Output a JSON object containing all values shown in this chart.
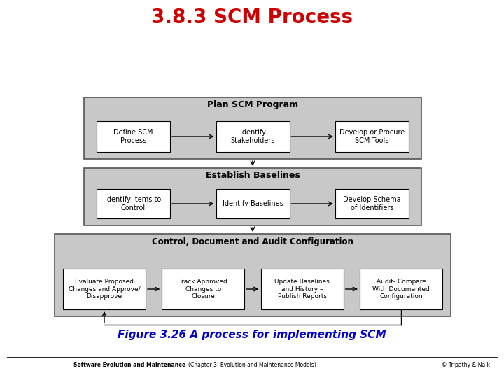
{
  "title": "3.8.3 SCM Process",
  "title_color": "#CC0000",
  "title_fontsize": 20,
  "figure_caption": "Figure 3.26 A process for implementing SCM",
  "caption_color": "#0000CC",
  "caption_fontsize": 11,
  "footer_left": "Software Evolution and Maintenance",
  "footer_right": "© Tripathy & Naik",
  "footer_middle": "(Chapter 3: Evolution and Maintenance Models)",
  "bg_color": "#FFFFFF",
  "group1": {
    "title": "Plan SCM Program",
    "boxes": [
      "Define SCM\nProcess",
      "Identify\nStakeholders",
      "Develop or Procure\nSCM Tools"
    ]
  },
  "group2": {
    "title": "Establish Baselines",
    "boxes": [
      "Identify Items to\nControl",
      "Identify Baselines",
      "Develop Schema\nof Identifiers"
    ]
  },
  "group3": {
    "title": "Control, Document and Audit Configuration",
    "boxes": [
      "Evaluate Proposed\nChanges and Approve/\nDisapprove",
      "Track Approved\nChanges to\nClosure",
      "Update Baselines\nand History –\nPublish Reports",
      "Audit- Compare\nWith Documented\nConfiguration"
    ]
  }
}
